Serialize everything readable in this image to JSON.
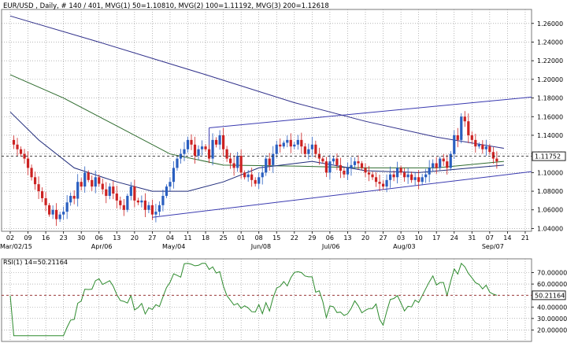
{
  "chart_data": {
    "type": "candlestick",
    "title": "EUR/USD , Daily, # 140 / 401, MVG(1) 50=1.10810, MVG(2) 100=1.11192, MVG(3) 200=1.12618",
    "y_ticks": [
      "1.26000",
      "1.24000",
      "1.22000",
      "1.20000",
      "1.18000",
      "1.16000",
      "1.14000",
      "1.12000",
      "1.10000",
      "1.08000",
      "1.06000",
      "1.04000"
    ],
    "ylim": [
      1.037,
      1.275
    ],
    "current_price_label": "1.11752",
    "current_price": 1.11752,
    "x_ticks": [
      "02",
      "09",
      "16",
      "23",
      "30",
      "06",
      "13",
      "20",
      "27",
      "04",
      "11",
      "18",
      "25",
      "01",
      "08",
      "15",
      "22",
      "29",
      "06",
      "13",
      "20",
      "27",
      "03",
      "10",
      "17",
      "24",
      "31",
      "07",
      "14",
      "21"
    ],
    "month_labels": [
      "Mar/02/15",
      "Apr/06",
      "May/04",
      "Jun/08",
      "Jul/06",
      "Aug/03",
      "Sep/07"
    ],
    "month_label_tick_index": [
      0,
      5,
      9,
      14,
      18,
      22,
      27
    ],
    "last_tick_index": 27,
    "moving_averages": [
      {
        "name": "MVG(1) 50",
        "value": 1.1081,
        "color": "#1e2a7a"
      },
      {
        "name": "MVG(2) 100",
        "value": 1.11192,
        "color": "#2e6b2e"
      },
      {
        "name": "MVG(3) 200",
        "value": 1.12618,
        "color": "#2f2f8a"
      }
    ],
    "trendline_color": "#3a3ab0",
    "up_color": "#2a5fc0",
    "down_color": "#cc2222",
    "rsi": {
      "label": "RSI(1) 14=50.21164",
      "current_label": "50.21164",
      "current": 50.21164,
      "y_ticks": [
        "70.00000",
        "60.00000",
        "40.00000",
        "30.00000",
        "20.00000"
      ],
      "ylim": [
        10,
        82
      ],
      "color": "#2e8b2e"
    },
    "background": "#ffffff"
  }
}
